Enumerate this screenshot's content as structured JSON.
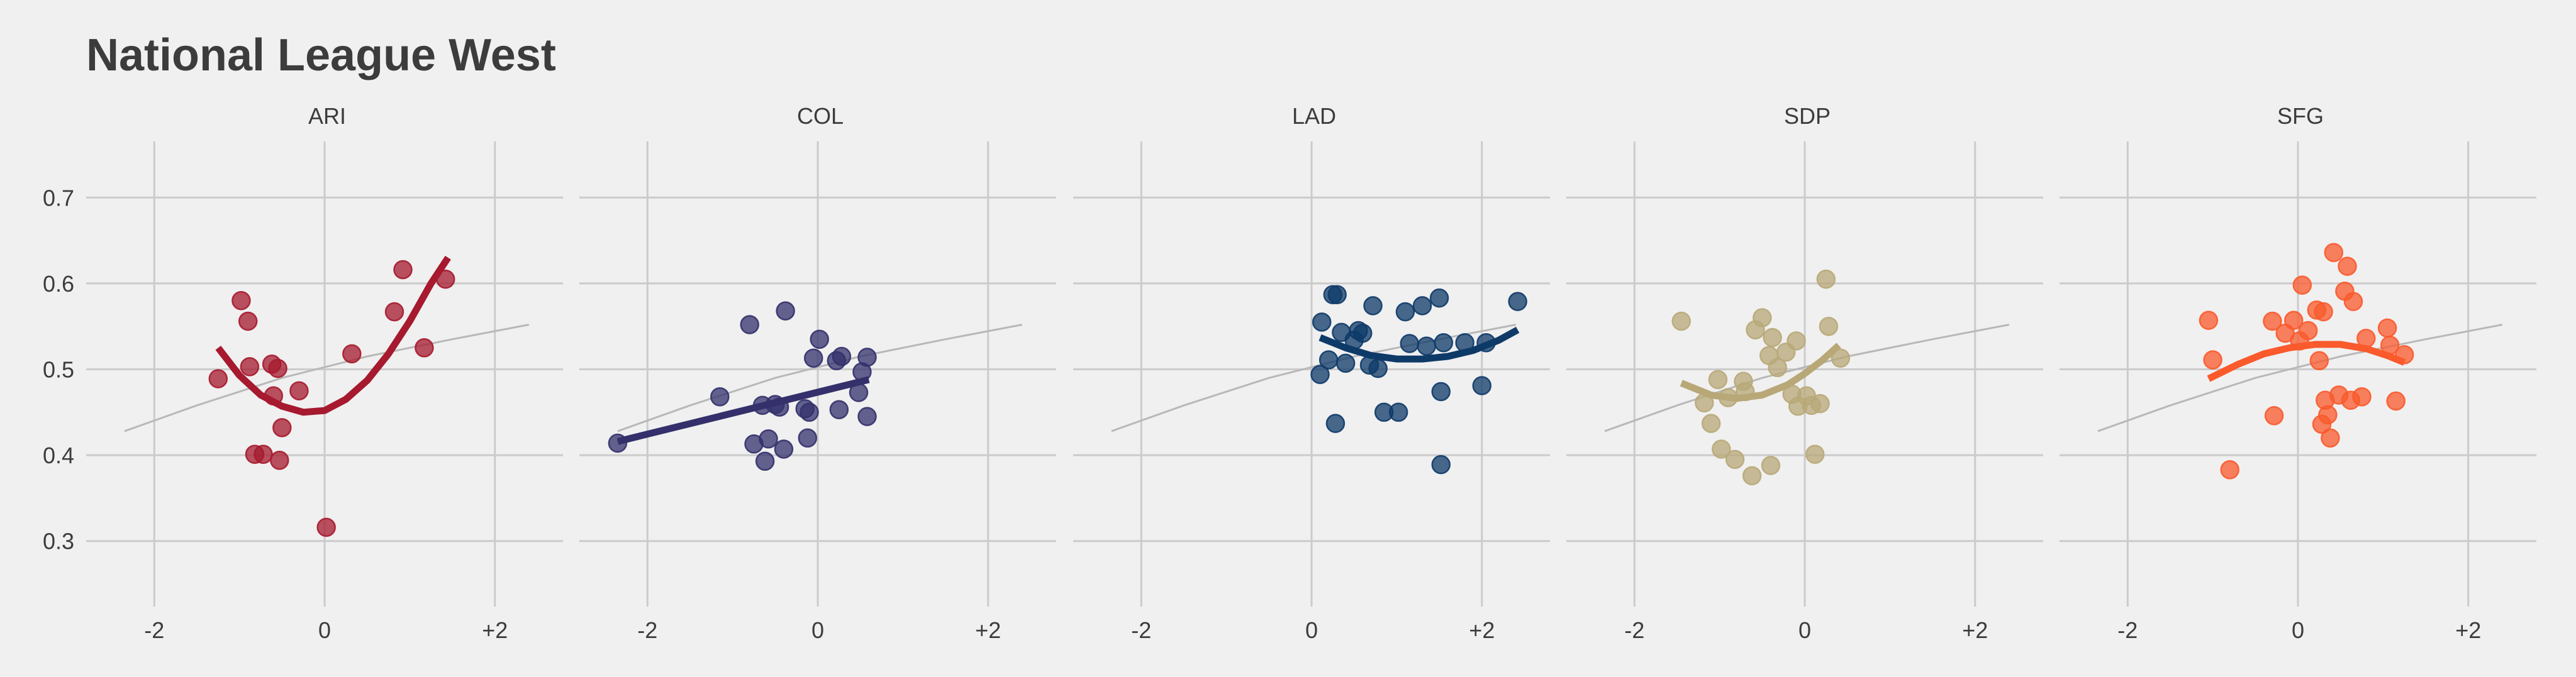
{
  "chart_data": {
    "type": "scatter",
    "title": "National League West",
    "xlim": [
      -2.8,
      2.8
    ],
    "ylim": [
      0.22,
      0.78
    ],
    "x_ticks": [
      -2,
      0,
      2
    ],
    "x_tick_labels": [
      "-2",
      "0",
      "+2"
    ],
    "y_ticks": [
      0.3,
      0.4,
      0.5,
      0.6,
      0.7
    ],
    "y_tick_labels": [
      "0.3",
      "0.4",
      "0.5",
      "0.6",
      "0.7"
    ],
    "grid": true,
    "reference_curve": {
      "x": [
        -2.35,
        -1.5,
        -0.5,
        0.5,
        1.5,
        2.4
      ],
      "y": [
        0.428,
        0.458,
        0.49,
        0.515,
        0.535,
        0.552
      ]
    },
    "panels": [
      {
        "name": "ARI",
        "color": "#a6192e",
        "points": [
          [
            -1.25,
            0.489
          ],
          [
            -0.98,
            0.58
          ],
          [
            -0.9,
            0.556
          ],
          [
            -0.88,
            0.503
          ],
          [
            -0.82,
            0.401
          ],
          [
            -0.72,
            0.401
          ],
          [
            -0.62,
            0.506
          ],
          [
            -0.6,
            0.469
          ],
          [
            -0.55,
            0.501
          ],
          [
            -0.53,
            0.394
          ],
          [
            -0.5,
            0.432
          ],
          [
            -0.3,
            0.475
          ],
          [
            0.02,
            0.316
          ],
          [
            0.32,
            0.518
          ],
          [
            0.82,
            0.567
          ],
          [
            0.92,
            0.616
          ],
          [
            1.17,
            0.525
          ],
          [
            1.42,
            0.605
          ]
        ],
        "trend": {
          "x": [
            -1.25,
            -1.0,
            -0.75,
            -0.5,
            -0.25,
            0.0,
            0.25,
            0.5,
            0.75,
            1.0,
            1.25,
            1.45
          ],
          "y": [
            0.525,
            0.493,
            0.47,
            0.457,
            0.45,
            0.452,
            0.465,
            0.487,
            0.518,
            0.556,
            0.6,
            0.63
          ]
        }
      },
      {
        "name": "COL",
        "color": "#33306b",
        "points": [
          [
            -2.35,
            0.414
          ],
          [
            -1.15,
            0.468
          ],
          [
            -0.8,
            0.552
          ],
          [
            -0.75,
            0.413
          ],
          [
            -0.65,
            0.458
          ],
          [
            -0.62,
            0.393
          ],
          [
            -0.58,
            0.419
          ],
          [
            -0.5,
            0.459
          ],
          [
            -0.45,
            0.456
          ],
          [
            -0.4,
            0.407
          ],
          [
            -0.38,
            0.568
          ],
          [
            -0.15,
            0.454
          ],
          [
            -0.12,
            0.42
          ],
          [
            -0.1,
            0.45
          ],
          [
            -0.05,
            0.513
          ],
          [
            0.02,
            0.535
          ],
          [
            0.22,
            0.51
          ],
          [
            0.25,
            0.453
          ],
          [
            0.28,
            0.515
          ],
          [
            0.48,
            0.473
          ],
          [
            0.52,
            0.497
          ],
          [
            0.58,
            0.514
          ],
          [
            0.58,
            0.445
          ]
        ],
        "trend": {
          "x": [
            -2.35,
            0.6
          ],
          "y": [
            0.416,
            0.488
          ]
        }
      },
      {
        "name": "LAD",
        "color": "#0e3a68",
        "points": [
          [
            0.1,
            0.494
          ],
          [
            0.12,
            0.555
          ],
          [
            0.2,
            0.511
          ],
          [
            0.25,
            0.587
          ],
          [
            0.28,
            0.437
          ],
          [
            0.3,
            0.587
          ],
          [
            0.35,
            0.543
          ],
          [
            0.4,
            0.507
          ],
          [
            0.5,
            0.534
          ],
          [
            0.55,
            0.545
          ],
          [
            0.6,
            0.542
          ],
          [
            0.68,
            0.505
          ],
          [
            0.72,
            0.574
          ],
          [
            0.78,
            0.501
          ],
          [
            0.85,
            0.45
          ],
          [
            1.02,
            0.45
          ],
          [
            1.1,
            0.567
          ],
          [
            1.15,
            0.53
          ],
          [
            1.3,
            0.574
          ],
          [
            1.35,
            0.527
          ],
          [
            1.5,
            0.583
          ],
          [
            1.52,
            0.474
          ],
          [
            1.52,
            0.389
          ],
          [
            1.55,
            0.531
          ],
          [
            1.8,
            0.531
          ],
          [
            2.0,
            0.481
          ],
          [
            2.05,
            0.531
          ],
          [
            2.42,
            0.579
          ]
        ],
        "trend": {
          "x": [
            0.1,
            0.4,
            0.7,
            1.0,
            1.3,
            1.6,
            1.9,
            2.2,
            2.42
          ],
          "y": [
            0.537,
            0.525,
            0.516,
            0.512,
            0.512,
            0.515,
            0.522,
            0.534,
            0.546
          ]
        }
      },
      {
        "name": "SDP",
        "color": "#b8a878",
        "points": [
          [
            -1.45,
            0.556
          ],
          [
            -1.18,
            0.461
          ],
          [
            -1.1,
            0.437
          ],
          [
            -1.02,
            0.488
          ],
          [
            -0.98,
            0.407
          ],
          [
            -0.9,
            0.467
          ],
          [
            -0.82,
            0.395
          ],
          [
            -0.72,
            0.486
          ],
          [
            -0.7,
            0.474
          ],
          [
            -0.62,
            0.376
          ],
          [
            -0.58,
            0.546
          ],
          [
            -0.5,
            0.56
          ],
          [
            -0.42,
            0.516
          ],
          [
            -0.4,
            0.388
          ],
          [
            -0.38,
            0.537
          ],
          [
            -0.32,
            0.502
          ],
          [
            -0.22,
            0.52
          ],
          [
            -0.15,
            0.471
          ],
          [
            -0.1,
            0.533
          ],
          [
            -0.08,
            0.457
          ],
          [
            0.02,
            0.469
          ],
          [
            0.08,
            0.458
          ],
          [
            0.12,
            0.401
          ],
          [
            0.18,
            0.46
          ],
          [
            0.25,
            0.605
          ],
          [
            0.28,
            0.55
          ],
          [
            0.42,
            0.513
          ]
        ],
        "trend": {
          "x": [
            -1.45,
            -1.1,
            -0.8,
            -0.5,
            -0.2,
            0.0,
            0.2,
            0.4
          ],
          "y": [
            0.484,
            0.47,
            0.466,
            0.47,
            0.482,
            0.495,
            0.51,
            0.528
          ]
        }
      },
      {
        "name": "SFG",
        "color": "#fa5a2c",
        "points": [
          [
            -1.05,
            0.557
          ],
          [
            -1.0,
            0.511
          ],
          [
            -0.8,
            0.383
          ],
          [
            -0.3,
            0.556
          ],
          [
            -0.28,
            0.446
          ],
          [
            -0.15,
            0.542
          ],
          [
            -0.05,
            0.557
          ],
          [
            0.02,
            0.533
          ],
          [
            0.05,
            0.598
          ],
          [
            0.12,
            0.545
          ],
          [
            0.22,
            0.569
          ],
          [
            0.25,
            0.51
          ],
          [
            0.28,
            0.436
          ],
          [
            0.3,
            0.567
          ],
          [
            0.32,
            0.464
          ],
          [
            0.35,
            0.447
          ],
          [
            0.38,
            0.42
          ],
          [
            0.42,
            0.636
          ],
          [
            0.48,
            0.47
          ],
          [
            0.55,
            0.591
          ],
          [
            0.58,
            0.62
          ],
          [
            0.62,
            0.464
          ],
          [
            0.65,
            0.579
          ],
          [
            0.75,
            0.468
          ],
          [
            0.8,
            0.536
          ],
          [
            1.05,
            0.548
          ],
          [
            1.08,
            0.528
          ],
          [
            1.15,
            0.463
          ],
          [
            1.25,
            0.517
          ]
        ],
        "trend": {
          "x": [
            -1.05,
            -0.7,
            -0.4,
            -0.1,
            0.2,
            0.5,
            0.8,
            1.05,
            1.25
          ],
          "y": [
            0.489,
            0.506,
            0.518,
            0.525,
            0.529,
            0.529,
            0.524,
            0.516,
            0.508
          ]
        }
      }
    ]
  }
}
